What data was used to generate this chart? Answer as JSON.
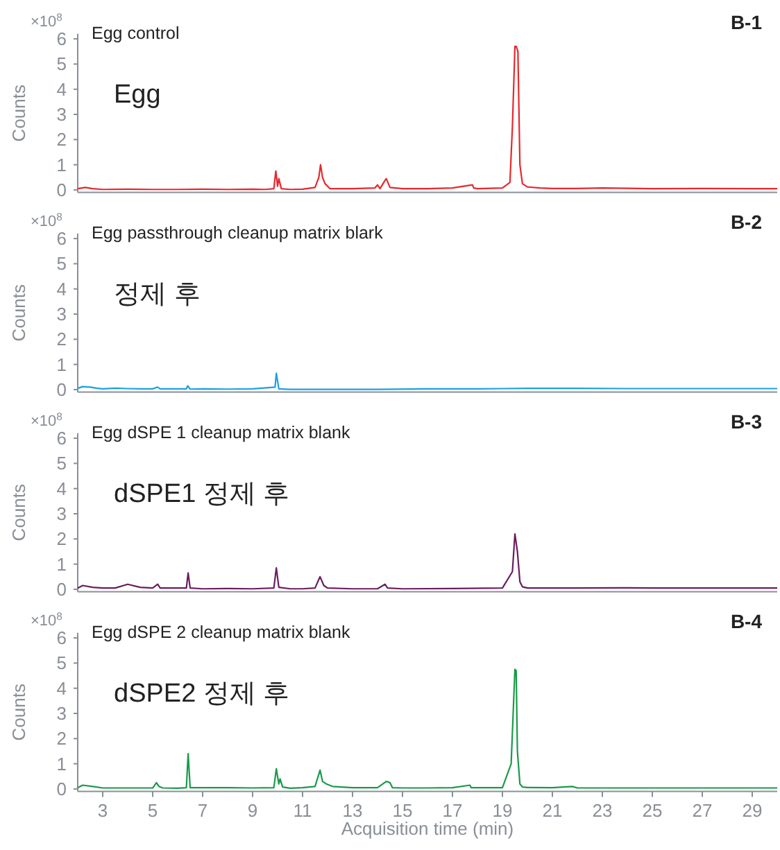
{
  "chart_data": [
    {
      "type": "line",
      "title": "Egg control",
      "ylabel": "Counts",
      "annotations": [
        "Egg",
        "B-1",
        "×10$^{8}$"
      ],
      "xlim": [
        2,
        30
      ],
      "xticks": [
        3,
        5,
        7,
        9,
        11,
        13,
        15,
        17,
        19,
        21,
        23,
        25,
        27,
        29
      ],
      "ylim": [
        -0.1,
        6.2
      ],
      "yticks": [
        0,
        1,
        2,
        3,
        4,
        5,
        6
      ],
      "tick_labels": "y",
      "grid": false,
      "series": [
        {
          "color": "#e8282c",
          "x": [
            2,
            2.3,
            2.6,
            3,
            4,
            5,
            6,
            7,
            8,
            9,
            9.5,
            9.85,
            9.93,
            10.0,
            10.05,
            10.15,
            10.5,
            11,
            11.5,
            11.65,
            11.72,
            11.8,
            11.9,
            12.1,
            13,
            13.9,
            14.0,
            14.1,
            14.25,
            14.35,
            14.5,
            15,
            16,
            17,
            17.8,
            17.85,
            18,
            19,
            19.3,
            19.4,
            19.5,
            19.55,
            19.62,
            19.7,
            19.8,
            20,
            20.5,
            21,
            22,
            23,
            25,
            27,
            29,
            30
          ],
          "values": [
            0.05,
            0.1,
            0.05,
            0.02,
            0.03,
            0.02,
            0.02,
            0.03,
            0.02,
            0.03,
            0.02,
            0.05,
            0.75,
            0.15,
            0.45,
            0.05,
            0.02,
            0.03,
            0.1,
            0.5,
            1.0,
            0.5,
            0.25,
            0.05,
            0.05,
            0.08,
            0.2,
            0.05,
            0.3,
            0.45,
            0.1,
            0.05,
            0.05,
            0.08,
            0.2,
            0.08,
            0.05,
            0.08,
            0.3,
            2.5,
            5.7,
            5.7,
            5.5,
            1.0,
            0.25,
            0.12,
            0.08,
            0.06,
            0.06,
            0.08,
            0.05,
            0.06,
            0.05,
            0.05
          ]
        }
      ]
    },
    {
      "type": "line",
      "title": "Egg passthrough cleanup matrix blark",
      "ylabel": "Counts",
      "annotations": [
        "정제 후",
        "B-2",
        "×10$^{8}$"
      ],
      "xlim": [
        2,
        30
      ],
      "xticks": [
        3,
        5,
        7,
        9,
        11,
        13,
        15,
        17,
        19,
        21,
        23,
        25,
        27,
        29
      ],
      "ylim": [
        -0.1,
        6.2
      ],
      "yticks": [
        0,
        1,
        2,
        3,
        4,
        5,
        6
      ],
      "tick_labels": "y",
      "grid": false,
      "series": [
        {
          "color": "#1ba1e2",
          "x": [
            2,
            2.2,
            2.5,
            2.8,
            3,
            3.5,
            4,
            4.5,
            5,
            5.2,
            5.3,
            6,
            6.35,
            6.4,
            6.5,
            7,
            8,
            9,
            9.9,
            9.95,
            10.05,
            10.5,
            12,
            14,
            16,
            17,
            18,
            19,
            20,
            22,
            24,
            26,
            28,
            30
          ],
          "values": [
            0.05,
            0.12,
            0.1,
            0.05,
            0.03,
            0.06,
            0.04,
            0.03,
            0.03,
            0.1,
            0.03,
            0.03,
            0.03,
            0.15,
            0.02,
            0.03,
            0.02,
            0.03,
            0.1,
            0.65,
            0.03,
            0.01,
            0.01,
            0.01,
            0.03,
            0.03,
            0.03,
            0.04,
            0.05,
            0.05,
            0.04,
            0.04,
            0.04,
            0.04
          ]
        }
      ]
    },
    {
      "type": "line",
      "title": "Egg dSPE 1 cleanup matrix blank",
      "ylabel": "Counts",
      "annotations": [
        "dSPE1 정제 후",
        "B-3",
        "×10$^{8}$"
      ],
      "xlim": [
        2,
        30
      ],
      "xticks": [
        3,
        5,
        7,
        9,
        11,
        13,
        15,
        17,
        19,
        21,
        23,
        25,
        27,
        29
      ],
      "ylim": [
        -0.1,
        6.2
      ],
      "yticks": [
        0,
        1,
        2,
        3,
        4,
        5,
        6
      ],
      "tick_labels": "y",
      "grid": false,
      "series": [
        {
          "color": "#6b1d5e",
          "x": [
            2,
            2.2,
            2.6,
            3,
            3.5,
            4,
            4.5,
            5,
            5.2,
            5.3,
            6,
            6.35,
            6.42,
            6.5,
            7,
            8,
            9,
            9.85,
            9.95,
            10.05,
            10.5,
            11,
            11.5,
            11.7,
            11.85,
            12,
            13,
            14,
            14.3,
            14.4,
            15,
            17,
            19,
            19.4,
            19.5,
            19.6,
            19.7,
            19.8,
            20,
            21,
            22,
            24,
            25,
            27,
            29,
            30
          ],
          "values": [
            0.05,
            0.15,
            0.08,
            0.05,
            0.05,
            0.2,
            0.08,
            0.05,
            0.2,
            0.05,
            0.05,
            0.05,
            0.65,
            0.05,
            0.02,
            0.03,
            0.02,
            0.05,
            0.85,
            0.08,
            0.02,
            0.02,
            0.05,
            0.5,
            0.15,
            0.05,
            0.02,
            0.02,
            0.2,
            0.05,
            0.02,
            0.03,
            0.05,
            0.7,
            2.2,
            1.5,
            0.3,
            0.1,
            0.05,
            0.05,
            0.05,
            0.06,
            0.05,
            0.05,
            0.05,
            0.05
          ]
        }
      ]
    },
    {
      "type": "line",
      "title": "Egg dSPE 2 cleanup matrix blank",
      "xlabel": "Acquisition time (min)",
      "ylabel": "Counts",
      "annotations": [
        "dSPE2 정제 후",
        "B-4",
        "×10$^{8}$"
      ],
      "xlim": [
        2,
        30
      ],
      "xticks": [
        3,
        5,
        7,
        9,
        11,
        13,
        15,
        17,
        19,
        21,
        23,
        25,
        27,
        29
      ],
      "ylim": [
        -0.1,
        6.2
      ],
      "yticks": [
        0,
        1,
        2,
        3,
        4,
        5,
        6
      ],
      "grid": false,
      "series": [
        {
          "color": "#1a9a4a",
          "x": [
            2,
            2.2,
            2.6,
            3,
            4,
            5,
            5.15,
            5.25,
            5.4,
            6,
            6.35,
            6.42,
            6.5,
            7,
            8,
            9,
            9.85,
            9.95,
            10.05,
            10.1,
            10.2,
            10.5,
            11,
            11.5,
            11.7,
            11.8,
            11.95,
            12.2,
            13,
            14,
            14.35,
            14.5,
            14.6,
            15,
            16,
            17,
            17.7,
            17.75,
            18,
            19,
            19.35,
            19.5,
            19.55,
            19.6,
            19.7,
            19.8,
            20,
            21,
            21.8,
            22,
            24,
            26,
            28,
            30
          ],
          "values": [
            0.05,
            0.15,
            0.1,
            0.04,
            0.04,
            0.04,
            0.25,
            0.1,
            0.04,
            0.03,
            0.05,
            1.4,
            0.05,
            0.05,
            0.05,
            0.04,
            0.05,
            0.8,
            0.2,
            0.4,
            0.08,
            0.03,
            0.05,
            0.1,
            0.75,
            0.3,
            0.2,
            0.1,
            0.05,
            0.05,
            0.3,
            0.25,
            0.05,
            0.04,
            0.04,
            0.05,
            0.15,
            0.05,
            0.05,
            0.05,
            1.0,
            4.75,
            4.7,
            1.5,
            0.2,
            0.08,
            0.06,
            0.05,
            0.1,
            0.04,
            0.04,
            0.04,
            0.04,
            0.04
          ]
        }
      ]
    }
  ]
}
